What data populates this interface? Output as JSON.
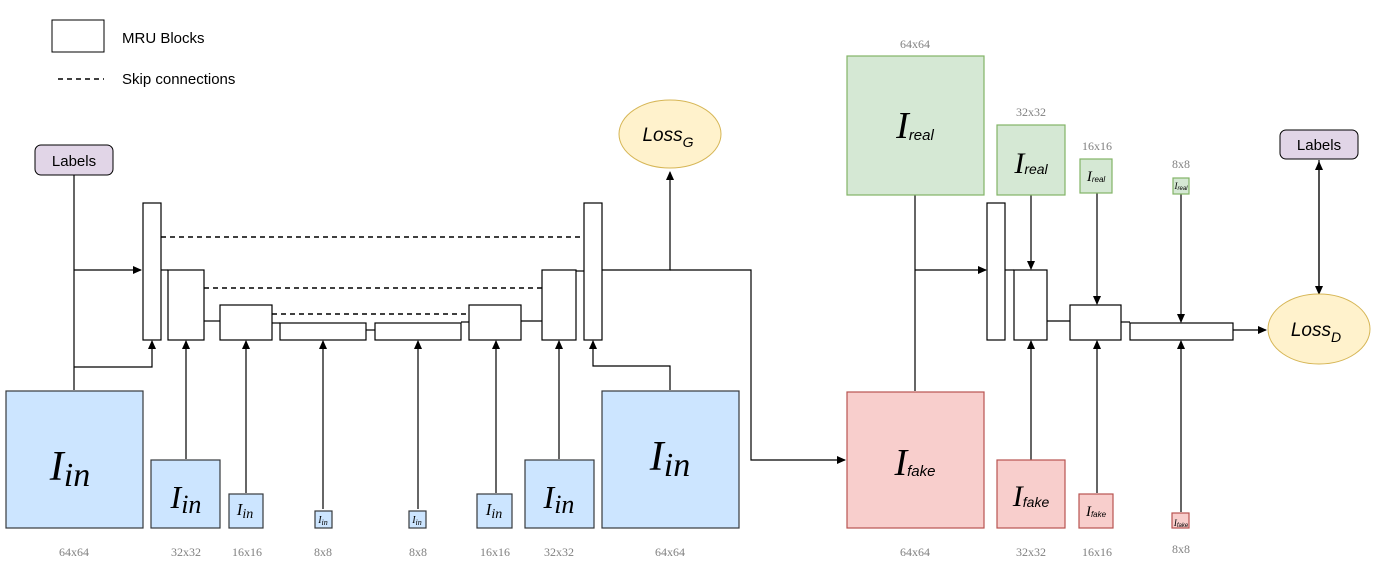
{
  "legend": {
    "mru_label": "MRU Blocks",
    "skip_label": "Skip connections"
  },
  "generator": {
    "labels": "Labels",
    "loss": {
      "main": "Loss",
      "sub": "G"
    },
    "inputs": [
      {
        "main": "I",
        "sub": "in",
        "size": "64x64"
      },
      {
        "main": "I",
        "sub": "in",
        "size": "32x32"
      },
      {
        "main": "I",
        "sub": "in",
        "size": "16x16"
      },
      {
        "main": "I",
        "sub": "in",
        "size": "8x8"
      },
      {
        "main": "I",
        "sub": "in",
        "size": "8x8"
      },
      {
        "main": "I",
        "sub": "in",
        "size": "16x16"
      },
      {
        "main": "I",
        "sub": "in",
        "size": "32x32"
      },
      {
        "main": "I",
        "sub": "in",
        "size": "64x64"
      }
    ]
  },
  "discriminator": {
    "labels": "Labels",
    "loss": {
      "main": "Loss",
      "sub": "D"
    },
    "real": [
      {
        "main": "I",
        "sub": "real",
        "size": "64x64"
      },
      {
        "main": "I",
        "sub": "real",
        "size": "32x32"
      },
      {
        "main": "I",
        "sub": "real",
        "size": "16x16"
      },
      {
        "main": "I",
        "sub": "real",
        "size": "8x8"
      }
    ],
    "fake": [
      {
        "main": "I",
        "sub": "fake",
        "size": "64x64"
      },
      {
        "main": "I",
        "sub": "fake",
        "size": "32x32"
      },
      {
        "main": "I",
        "sub": "fake",
        "size": "16x16"
      },
      {
        "main": "I",
        "sub": "fake",
        "size": "8x8"
      }
    ]
  },
  "colors": {
    "input_fill": "#cce5ff",
    "input_stroke": "#36393d",
    "real_fill": "#d5e8d4",
    "real_stroke": "#82b366",
    "fake_fill": "#f8cecc",
    "fake_stroke": "#b85450",
    "loss_fill": "#fff2cc",
    "loss_stroke": "#d6b656",
    "labels_fill": "#e1d5e7",
    "labels_stroke": "#000000"
  }
}
